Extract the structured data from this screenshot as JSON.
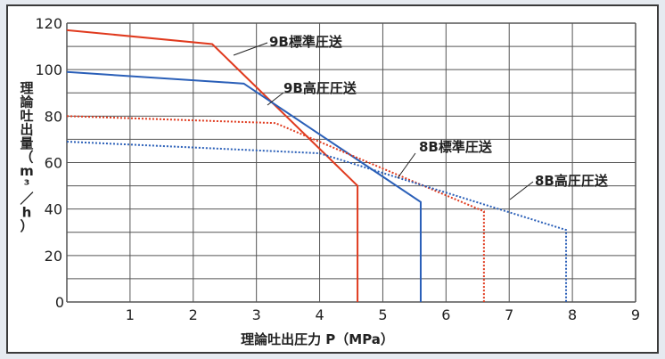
{
  "chart_data": {
    "type": "line",
    "xlabel": "理論吐出圧力 P（MPa）",
    "ylabel": "理論吐出量（m³／h）",
    "xlim": [
      0,
      9
    ],
    "ylim": [
      0,
      120
    ],
    "x_ticks": [
      "0",
      "1",
      "2",
      "3",
      "4",
      "5",
      "6",
      "7",
      "8",
      "9"
    ],
    "y_ticks": [
      "0",
      "20",
      "40",
      "60",
      "80",
      "100",
      "120"
    ],
    "grid": true,
    "series": [
      {
        "name": "9B標準圧送",
        "color": "#e03a1e",
        "style": "solid",
        "points": [
          [
            0,
            117
          ],
          [
            2.3,
            111
          ],
          [
            4.6,
            50
          ],
          [
            4.6,
            0
          ]
        ]
      },
      {
        "name": "9B高圧圧送",
        "color": "#2a5fb8",
        "style": "solid",
        "points": [
          [
            0,
            99
          ],
          [
            2.8,
            94
          ],
          [
            5.6,
            43
          ],
          [
            5.6,
            0
          ]
        ]
      },
      {
        "name": "8B標準圧送",
        "color": "#e03a1e",
        "style": "dotted",
        "points": [
          [
            0,
            80
          ],
          [
            3.3,
            77
          ],
          [
            6.6,
            39
          ],
          [
            6.6,
            0
          ]
        ]
      },
      {
        "name": "8B高圧圧送",
        "color": "#2a5fb8",
        "style": "dotted",
        "points": [
          [
            0,
            69
          ],
          [
            4.0,
            64
          ],
          [
            7.9,
            31
          ],
          [
            7.9,
            0
          ]
        ]
      }
    ]
  }
}
